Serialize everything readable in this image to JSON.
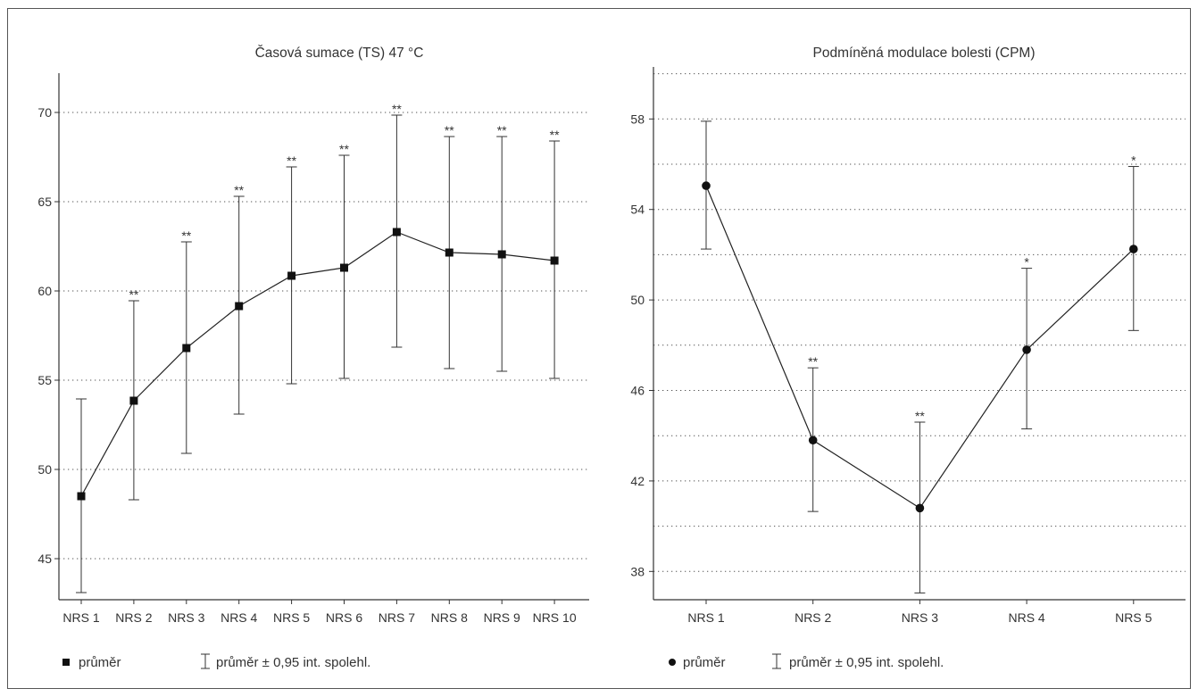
{
  "chart_data": [
    {
      "type": "line",
      "title": "Časová sumace (TS) 47 °C",
      "categories": [
        "NRS 1",
        "NRS 2",
        "NRS 3",
        "NRS 4",
        "NRS 5",
        "NRS 6",
        "NRS 7",
        "NRS 8",
        "NRS 9",
        "NRS 10"
      ],
      "series": [
        {
          "name": "průměr",
          "marker": "square",
          "values": [
            48.5,
            53.85,
            56.8,
            59.15,
            60.85,
            61.3,
            63.3,
            62.15,
            62.05,
            61.7
          ],
          "ci_low": [
            43.1,
            48.3,
            50.9,
            53.1,
            54.8,
            55.1,
            56.85,
            55.65,
            55.5,
            55.1
          ],
          "ci_high": [
            53.95,
            59.45,
            62.75,
            65.3,
            66.95,
            67.6,
            69.85,
            68.65,
            68.65,
            68.4
          ],
          "significance": [
            "",
            "**",
            "**",
            "**",
            "**",
            "**",
            "**",
            "**",
            "**",
            "**"
          ]
        }
      ],
      "ylim": [
        42.7,
        72.2
      ],
      "yticks": [
        45,
        50,
        55,
        60,
        65,
        70
      ],
      "grid": true,
      "legend": {
        "position": "bottom-left",
        "mean_label": "průměr",
        "ci_label": "průměr ± 0,95 int. spolehl."
      }
    },
    {
      "type": "line",
      "title": "Podmíněná modulace bolesti (CPM)",
      "categories": [
        "NRS 1",
        "NRS 2",
        "NRS 3",
        "NRS 4",
        "NRS 5"
      ],
      "series": [
        {
          "name": "průměr",
          "marker": "circle",
          "values": [
            55.05,
            43.8,
            40.8,
            47.8,
            52.25
          ],
          "ci_low": [
            52.25,
            40.65,
            37.05,
            44.3,
            48.65
          ],
          "ci_high": [
            57.9,
            47.0,
            44.6,
            51.4,
            55.9
          ],
          "significance": [
            "",
            "**",
            "**",
            "*",
            "*"
          ]
        }
      ],
      "ylim": [
        36.75,
        60.3
      ],
      "yticks": [
        38,
        42,
        46,
        50,
        54,
        58
      ],
      "ygrid_step": 2,
      "grid": true,
      "legend": {
        "position": "bottom-left",
        "mean_label": "průměr",
        "ci_label": "průměr ± 0,95 int. spolehl."
      }
    }
  ]
}
